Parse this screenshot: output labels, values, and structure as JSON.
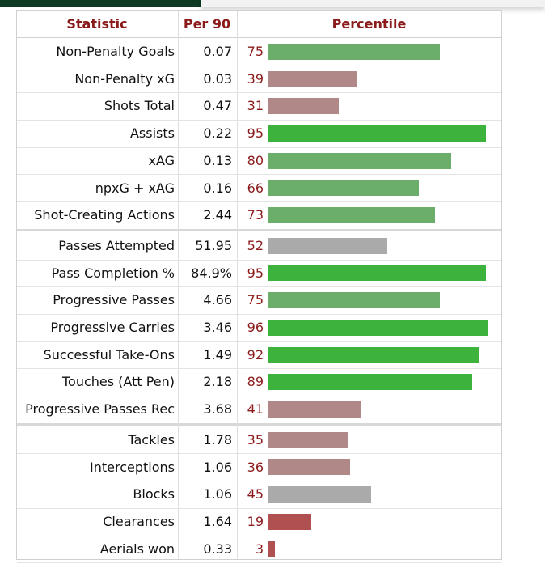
{
  "chart_data": {
    "type": "table",
    "columns": [
      "Statistic",
      "Per 90",
      "Percentile"
    ],
    "percentile_range": [
      0,
      100
    ],
    "colors": {
      "header_text": "#8b1a1a",
      "percentile_text": "#8b1a1a",
      "bar_high": "#3db33d",
      "bar_mid_high": "#6aae6a",
      "bar_mid": "#aaaaaa",
      "bar_mid_low": "#b08888",
      "bar_low": "#b05050"
    },
    "groups": [
      {
        "rows": [
          {
            "statistic": "Non-Penalty Goals",
            "per90": "0.07",
            "percentile": 75
          },
          {
            "statistic": "Non-Penalty xG",
            "per90": "0.03",
            "percentile": 39
          },
          {
            "statistic": "Shots Total",
            "per90": "0.47",
            "percentile": 31
          },
          {
            "statistic": "Assists",
            "per90": "0.22",
            "percentile": 95
          },
          {
            "statistic": "xAG",
            "per90": "0.13",
            "percentile": 80
          },
          {
            "statistic": "npxG + xAG",
            "per90": "0.16",
            "percentile": 66
          },
          {
            "statistic": "Shot-Creating Actions",
            "per90": "2.44",
            "percentile": 73
          }
        ]
      },
      {
        "rows": [
          {
            "statistic": "Passes Attempted",
            "per90": "51.95",
            "percentile": 52
          },
          {
            "statistic": "Pass Completion %",
            "per90": "84.9%",
            "percentile": 95
          },
          {
            "statistic": "Progressive Passes",
            "per90": "4.66",
            "percentile": 75
          },
          {
            "statistic": "Progressive Carries",
            "per90": "3.46",
            "percentile": 96
          },
          {
            "statistic": "Successful Take-Ons",
            "per90": "1.49",
            "percentile": 92
          },
          {
            "statistic": "Touches (Att Pen)",
            "per90": "2.18",
            "percentile": 89
          },
          {
            "statistic": "Progressive Passes Rec",
            "per90": "3.68",
            "percentile": 41
          }
        ]
      },
      {
        "rows": [
          {
            "statistic": "Tackles",
            "per90": "1.78",
            "percentile": 35
          },
          {
            "statistic": "Interceptions",
            "per90": "1.06",
            "percentile": 36
          },
          {
            "statistic": "Blocks",
            "per90": "1.06",
            "percentile": 45
          },
          {
            "statistic": "Clearances",
            "per90": "1.64",
            "percentile": 19
          },
          {
            "statistic": "Aerials won",
            "per90": "0.33",
            "percentile": 3
          }
        ]
      }
    ]
  }
}
